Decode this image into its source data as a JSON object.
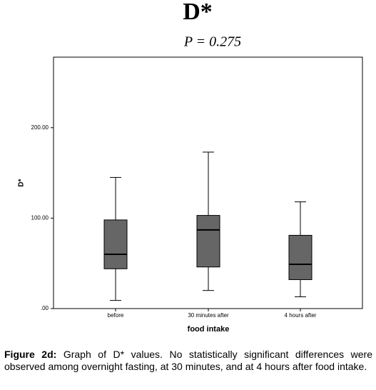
{
  "chart_data": {
    "type": "box",
    "title": "D*",
    "subtitle": "P = 0.275",
    "x_label": "food intake",
    "y_label": "D*",
    "categories": [
      "before",
      "30 minutes after",
      "4 hours after"
    ],
    "boxes": [
      {
        "min": 9,
        "q1": 44,
        "median": 60,
        "q3": 98,
        "max": 145
      },
      {
        "min": 20,
        "q1": 46,
        "median": 87,
        "q3": 103,
        "max": 173
      },
      {
        "min": 13,
        "q1": 32,
        "median": 49,
        "q3": 81,
        "max": 118
      }
    ],
    "color": "#666666",
    "ylim": [
      0,
      278
    ],
    "yticks": [
      {
        "value": 0,
        "label": ".00"
      },
      {
        "value": 100,
        "label": "100.00"
      },
      {
        "value": 200,
        "label": "200.00"
      }
    ]
  },
  "caption": {
    "label": "Figure 2d:",
    "text": "Graph of D* values. No statistically significant differences were observed among overnight fasting, at 30 minutes, and at 4 hours after food intake."
  }
}
